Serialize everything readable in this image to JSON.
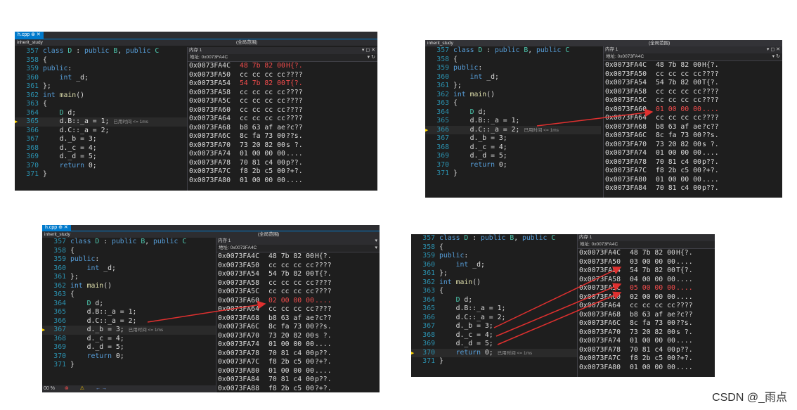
{
  "colors": {
    "accent": "#007acc",
    "arrow": "#e0302f",
    "changed_bytes": "#f14c4c",
    "line_number": "#2b91af",
    "keyword": "#569cd6",
    "type": "#4ec9b0"
  },
  "tab_label": "h.cpp",
  "project": "inherit_study",
  "scope_label": "(全局范围)",
  "memory_title": "内存 1",
  "address_label": "地址: 0x0073FA4C",
  "elapsed_note": "已用时间 <= 1ms",
  "status_zoom": "00 %",
  "watermark": "CSDN @_雨点",
  "code_lines": [
    {
      "num": "357",
      "text": "class D : public B, public C"
    },
    {
      "num": "358",
      "text": "{"
    },
    {
      "num": "359",
      "text": "public:"
    },
    {
      "num": "360",
      "text": "    int _d;"
    },
    {
      "num": "361",
      "text": "};"
    },
    {
      "num": "362",
      "text": "int main()"
    },
    {
      "num": "363",
      "text": "{"
    },
    {
      "num": "364",
      "text": "    D d;"
    },
    {
      "num": "365",
      "text": "    d.B::_a = 1;"
    },
    {
      "num": "366",
      "text": "    d.C::_a = 2;"
    },
    {
      "num": "367",
      "text": "    d._b = 3;"
    },
    {
      "num": "368",
      "text": "    d._c = 4;"
    },
    {
      "num": "369",
      "text": "    d._d = 5;"
    },
    {
      "num": "370",
      "text": "    return 0;"
    },
    {
      "num": "371",
      "text": "}"
    }
  ],
  "panels": [
    {
      "current_line": "365",
      "memory": [
        {
          "addr": "0x0073FA4C",
          "bytes": "48 7b 82 00",
          "ascii": "H{?.",
          "changed": true
        },
        {
          "addr": "0x0073FA50",
          "bytes": "cc cc cc cc",
          "ascii": "????",
          "changed": false
        },
        {
          "addr": "0x0073FA54",
          "bytes": "54 7b 82 00",
          "ascii": "T{?.",
          "changed": true
        },
        {
          "addr": "0x0073FA58",
          "bytes": "cc cc cc cc",
          "ascii": "????",
          "changed": false
        },
        {
          "addr": "0x0073FA5C",
          "bytes": "cc cc cc cc",
          "ascii": "????",
          "changed": false
        },
        {
          "addr": "0x0073FA60",
          "bytes": "cc cc cc cc",
          "ascii": "????",
          "changed": false
        },
        {
          "addr": "0x0073FA64",
          "bytes": "cc cc cc cc",
          "ascii": "????",
          "changed": false
        },
        {
          "addr": "0x0073FA68",
          "bytes": "b8 63 af ae",
          "ascii": "?c??",
          "changed": false
        },
        {
          "addr": "0x0073FA6C",
          "bytes": "8c fa 73 00",
          "ascii": "??s.",
          "changed": false
        },
        {
          "addr": "0x0073FA70",
          "bytes": "73 20 82 00",
          "ascii": "s ?.",
          "changed": false
        },
        {
          "addr": "0x0073FA74",
          "bytes": "01 00 00 00",
          "ascii": "....",
          "changed": false
        },
        {
          "addr": "0x0073FA78",
          "bytes": "70 81 c4 00",
          "ascii": "p??.",
          "changed": false
        },
        {
          "addr": "0x0073FA7C",
          "bytes": "f8 2b c5 00",
          "ascii": "?+?.",
          "changed": false
        },
        {
          "addr": "0x0073FA80",
          "bytes": "01 00 00 00",
          "ascii": "....",
          "changed": false
        }
      ]
    },
    {
      "current_line": "366",
      "memory": [
        {
          "addr": "0x0073FA4C",
          "bytes": "48 7b 82 00",
          "ascii": "H{?.",
          "changed": false
        },
        {
          "addr": "0x0073FA50",
          "bytes": "cc cc cc cc",
          "ascii": "????",
          "changed": false
        },
        {
          "addr": "0x0073FA54",
          "bytes": "54 7b 82 00",
          "ascii": "T{?.",
          "changed": false
        },
        {
          "addr": "0x0073FA58",
          "bytes": "cc cc cc cc",
          "ascii": "????",
          "changed": false
        },
        {
          "addr": "0x0073FA5C",
          "bytes": "cc cc cc cc",
          "ascii": "????",
          "changed": false
        },
        {
          "addr": "0x0073FA60",
          "bytes": "01 00 00 00",
          "ascii": "....",
          "changed": true
        },
        {
          "addr": "0x0073FA64",
          "bytes": "cc cc cc cc",
          "ascii": "????",
          "changed": false
        },
        {
          "addr": "0x0073FA68",
          "bytes": "b8 63 af ae",
          "ascii": "?c??",
          "changed": false
        },
        {
          "addr": "0x0073FA6C",
          "bytes": "8c fa 73 00",
          "ascii": "??s.",
          "changed": false
        },
        {
          "addr": "0x0073FA70",
          "bytes": "73 20 82 00",
          "ascii": "s ?.",
          "changed": false
        },
        {
          "addr": "0x0073FA74",
          "bytes": "01 00 00 00",
          "ascii": "....",
          "changed": false
        },
        {
          "addr": "0x0073FA78",
          "bytes": "70 81 c4 00",
          "ascii": "p??.",
          "changed": false
        },
        {
          "addr": "0x0073FA7C",
          "bytes": "f8 2b c5 00",
          "ascii": "?+?.",
          "changed": false
        },
        {
          "addr": "0x0073FA80",
          "bytes": "01 00 00 00",
          "ascii": "....",
          "changed": false
        },
        {
          "addr": "0x0073FA84",
          "bytes": "70 81 c4 00",
          "ascii": "p??.",
          "changed": false
        }
      ]
    },
    {
      "current_line": "367",
      "memory": [
        {
          "addr": "0x0073FA4C",
          "bytes": "48 7b 82 00",
          "ascii": "H{?.",
          "changed": false
        },
        {
          "addr": "0x0073FA50",
          "bytes": "cc cc cc cc",
          "ascii": "????",
          "changed": false
        },
        {
          "addr": "0x0073FA54",
          "bytes": "54 7b 82 00",
          "ascii": "T{?.",
          "changed": false
        },
        {
          "addr": "0x0073FA58",
          "bytes": "cc cc cc cc",
          "ascii": "????",
          "changed": false
        },
        {
          "addr": "0x0073FA5C",
          "bytes": "cc cc cc cc",
          "ascii": "????",
          "changed": false
        },
        {
          "addr": "0x0073FA60",
          "bytes": "02 00 00 00",
          "ascii": "....",
          "changed": true
        },
        {
          "addr": "0x0073FA64",
          "bytes": "cc cc cc cc",
          "ascii": "????",
          "changed": false
        },
        {
          "addr": "0x0073FA68",
          "bytes": "b8 63 af ae",
          "ascii": "?c??",
          "changed": false
        },
        {
          "addr": "0x0073FA6C",
          "bytes": "8c fa 73 00",
          "ascii": "??s.",
          "changed": false
        },
        {
          "addr": "0x0073FA70",
          "bytes": "73 20 82 00",
          "ascii": "s ?.",
          "changed": false
        },
        {
          "addr": "0x0073FA74",
          "bytes": "01 00 00 00",
          "ascii": "....",
          "changed": false
        },
        {
          "addr": "0x0073FA78",
          "bytes": "70 81 c4 00",
          "ascii": "p??.",
          "changed": false
        },
        {
          "addr": "0x0073FA7C",
          "bytes": "f8 2b c5 00",
          "ascii": "?+?.",
          "changed": false
        },
        {
          "addr": "0x0073FA80",
          "bytes": "01 00 00 00",
          "ascii": "....",
          "changed": false
        },
        {
          "addr": "0x0073FA84",
          "bytes": "70 81 c4 00",
          "ascii": "p??.",
          "changed": false
        },
        {
          "addr": "0x0073FA88",
          "bytes": "f8 2b c5 00",
          "ascii": "?+?.",
          "changed": false
        }
      ]
    },
    {
      "current_line": "370",
      "memory": [
        {
          "addr": "0x0073FA4C",
          "bytes": "48 7b 82 00",
          "ascii": "H{?.",
          "changed": false
        },
        {
          "addr": "0x0073FA50",
          "bytes": "03 00 00 00",
          "ascii": "....",
          "changed": false
        },
        {
          "addr": "0x0073FA54",
          "bytes": "54 7b 82 00",
          "ascii": "T{?.",
          "changed": false
        },
        {
          "addr": "0x0073FA58",
          "bytes": "04 00 00 00",
          "ascii": "....",
          "changed": false
        },
        {
          "addr": "0x0073FA5C",
          "bytes": "05 00 00 00",
          "ascii": "....",
          "changed": true
        },
        {
          "addr": "0x0073FA60",
          "bytes": "02 00 00 00",
          "ascii": "....",
          "changed": false
        },
        {
          "addr": "0x0073FA64",
          "bytes": "cc cc cc cc",
          "ascii": "????",
          "changed": false
        },
        {
          "addr": "0x0073FA68",
          "bytes": "b8 63 af ae",
          "ascii": "?c??",
          "changed": false
        },
        {
          "addr": "0x0073FA6C",
          "bytes": "8c fa 73 00",
          "ascii": "??s.",
          "changed": false
        },
        {
          "addr": "0x0073FA70",
          "bytes": "73 20 82 00",
          "ascii": "s ?.",
          "changed": false
        },
        {
          "addr": "0x0073FA74",
          "bytes": "01 00 00 00",
          "ascii": "....",
          "changed": false
        },
        {
          "addr": "0x0073FA78",
          "bytes": "70 81 c4 00",
          "ascii": "p??.",
          "changed": false
        },
        {
          "addr": "0x0073FA7C",
          "bytes": "f8 2b c5 00",
          "ascii": "?+?.",
          "changed": false
        },
        {
          "addr": "0x0073FA80",
          "bytes": "01 00 00 00",
          "ascii": "....",
          "changed": false
        }
      ]
    }
  ]
}
